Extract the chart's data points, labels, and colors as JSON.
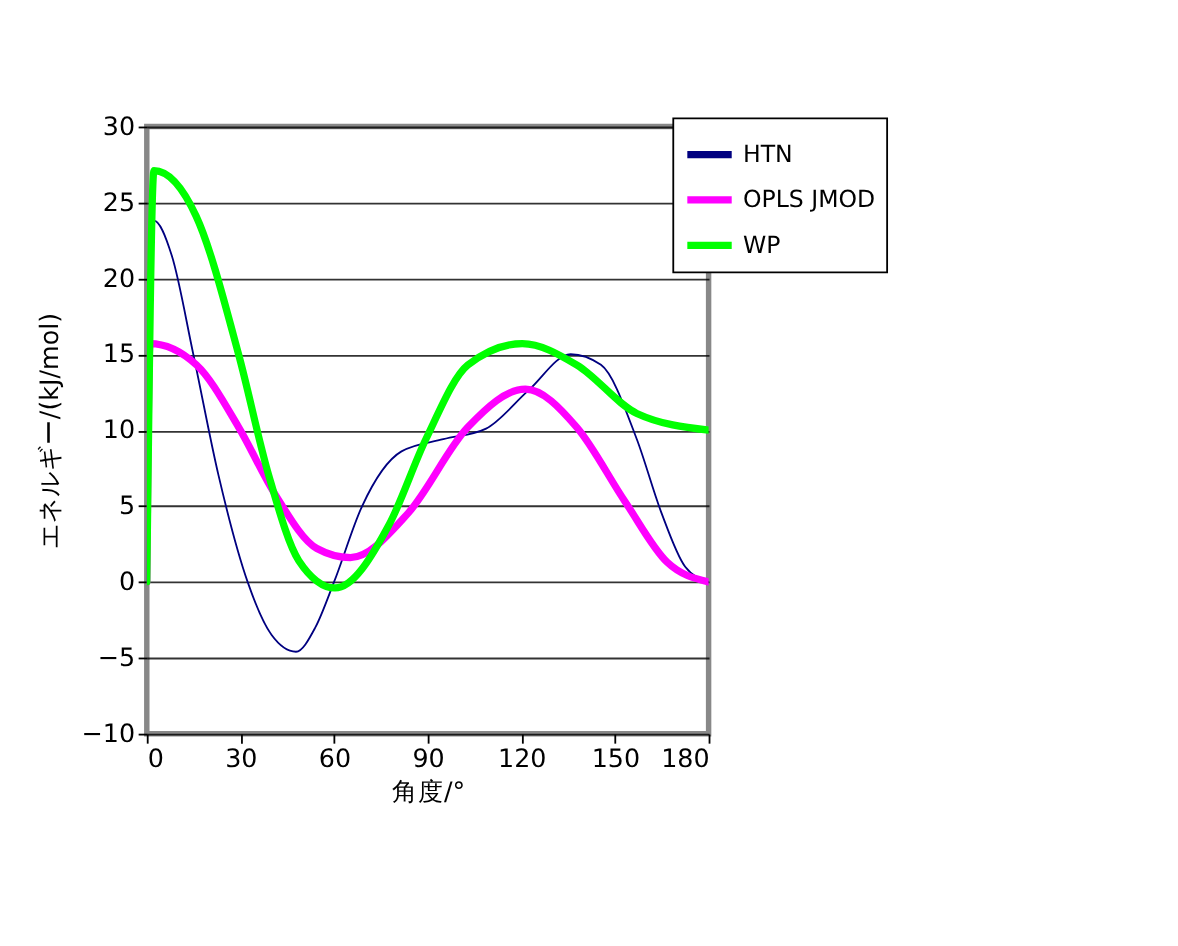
{
  "chart_data": {
    "type": "line",
    "xlabel": "角度/°",
    "ylabel": "エネルギー/(kJ/mol)",
    "xlim": [
      0,
      180
    ],
    "xticks": [
      0,
      30,
      60,
      90,
      120,
      150,
      180
    ],
    "ylim": [
      -10,
      30
    ],
    "yticks": [
      -10,
      -5,
      0,
      5,
      10,
      15,
      20,
      25,
      30
    ],
    "grid": "y",
    "legend": "top right",
    "line_style": "solid",
    "marker": "none",
    "series": [
      {
        "name": "HTN",
        "color": "#000080",
        "x": [
          0,
          2.3,
          8,
          14.9,
          23,
          32.3,
          40,
          47.8,
          54,
          60,
          69,
          81.6,
          95,
          108.7,
          122.2,
          135.8,
          145.5,
          157,
          164.8,
          172.5,
          180
        ],
        "values": [
          0,
          23.8,
          21.5,
          15,
          7,
          0,
          -3.5,
          -4.6,
          -3,
          0,
          5,
          8.6,
          9.4,
          10.1,
          12.6,
          15,
          14.3,
          9.4,
          4.6,
          1,
          0
        ]
      },
      {
        "name": "OPLS JMOD",
        "color": "#ff00ff",
        "x": [
          0,
          1,
          15.9,
          29.4,
          41,
          54.5,
          65.2,
          83.6,
          102.9,
          121.3,
          137.7,
          153.2,
          166.7,
          180
        ],
        "values": [
          0,
          15.7,
          14.3,
          10.2,
          5.8,
          2.2,
          1.6,
          4.5,
          10.2,
          12.7,
          10.2,
          5.3,
          1.3,
          0
        ]
      },
      {
        "name": "WP",
        "color": "#00ff00",
        "x": [
          0,
          2.3,
          15.8,
          29.4,
          39.1,
          48.7,
          60.3,
          77.7,
          89.4,
          102.9,
          120.3,
          137.7,
          157,
          180
        ],
        "values": [
          0,
          27.1,
          24.1,
          15,
          7,
          1.4,
          -0.4,
          3.8,
          9.4,
          14.3,
          15.7,
          14.3,
          11.1,
          10
        ]
      }
    ]
  }
}
